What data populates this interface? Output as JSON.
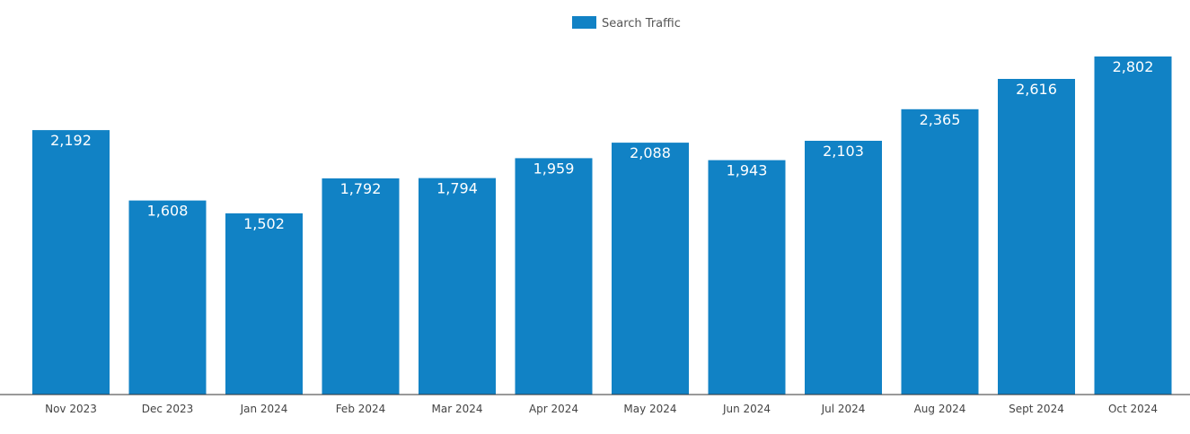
{
  "chart_data": {
    "type": "bar",
    "title": "",
    "xlabel": "",
    "ylabel": "",
    "legend": {
      "position": "top-center",
      "entries": [
        "Search Traffic"
      ]
    },
    "categories": [
      "Nov 2023",
      "Dec 2023",
      "Jan 2024",
      "Feb 2024",
      "Mar 2024",
      "Apr 2024",
      "May 2024",
      "Jun 2024",
      "Jul 2024",
      "Aug 2024",
      "Sept 2024",
      "Oct 2024"
    ],
    "series": [
      {
        "name": "Search Traffic",
        "color": "#1182C5",
        "values": [
          2192,
          1608,
          1502,
          1792,
          1794,
          1959,
          2088,
          1943,
          2103,
          2365,
          2616,
          2802
        ],
        "value_labels": [
          "2,192",
          "1,608",
          "1,502",
          "1,792",
          "1,794",
          "1,959",
          "2,088",
          "1,943",
          "2,103",
          "2,365",
          "2,616",
          "2,802"
        ]
      }
    ],
    "ylim": [
      0,
      2802
    ],
    "grid": false
  }
}
